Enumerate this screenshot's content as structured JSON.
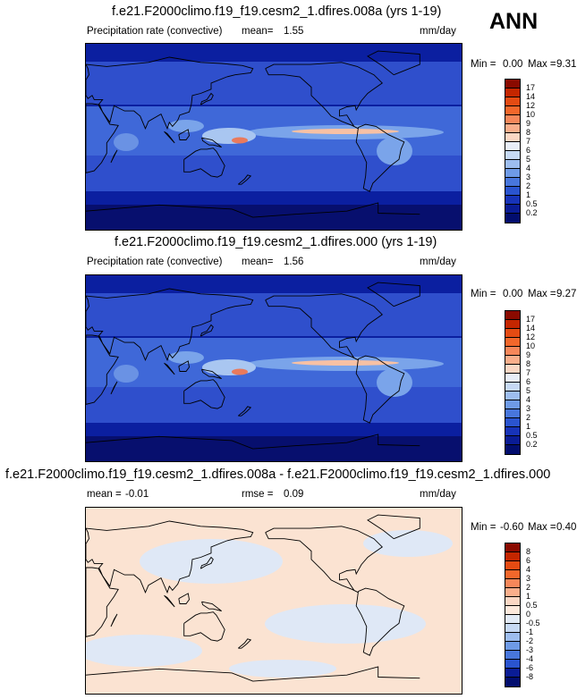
{
  "season_label": "ANN",
  "panels": [
    {
      "title": "f.e21.F2000climo.f19_f19.cesm2_1.dfires.008a (yrs 1-19)",
      "variable": "Precipitation rate (convective)",
      "stat1_label": "mean=",
      "stat1_value": "1.55",
      "stat2_label": "",
      "stat2_value": "",
      "units": "mm/day",
      "min_label": "Min =",
      "min_value": "0.00",
      "max_label": "Max =",
      "max_value": "9.31",
      "colorbar_labels": [
        "17",
        "14",
        "12",
        "10",
        "9",
        "8",
        "7",
        "6",
        "5",
        "4",
        "3",
        "2",
        "1",
        "0.5",
        "0.2"
      ],
      "colorbar_colors": [
        "#8a0a00",
        "#c42600",
        "#e44b13",
        "#f2672b",
        "#f6875a",
        "#f9ae8b",
        "#fad7c4",
        "#e8eef8",
        "#c6d9f4",
        "#9dbdef",
        "#6e9ae6",
        "#4876dc",
        "#2a54cf",
        "#1733b8",
        "#0a1c95",
        "#020d6e"
      ]
    },
    {
      "title": "f.e21.F2000climo.f19_f19.cesm2_1.dfires.000 (yrs 1-19)",
      "variable": "Precipitation rate (convective)",
      "stat1_label": "mean=",
      "stat1_value": "1.56",
      "stat2_label": "",
      "stat2_value": "",
      "units": "mm/day",
      "min_label": "Min =",
      "min_value": "0.00",
      "max_label": "Max =",
      "max_value": "9.27",
      "colorbar_labels": [
        "17",
        "14",
        "12",
        "10",
        "9",
        "8",
        "7",
        "6",
        "5",
        "4",
        "3",
        "2",
        "1",
        "0.5",
        "0.2"
      ],
      "colorbar_colors": [
        "#8a0a00",
        "#c42600",
        "#e44b13",
        "#f2672b",
        "#f6875a",
        "#f9ae8b",
        "#fad7c4",
        "#e8eef8",
        "#c6d9f4",
        "#9dbdef",
        "#6e9ae6",
        "#4876dc",
        "#2a54cf",
        "#1733b8",
        "#0a1c95",
        "#020d6e"
      ]
    },
    {
      "title": "f.e21.F2000climo.f19_f19.cesm2_1.dfires.008a - f.e21.F2000climo.f19_f19.cesm2_1.dfires.000",
      "variable": "",
      "stat1_label": "mean =",
      "stat1_value": "-0.01",
      "stat2_label": "rmse =",
      "stat2_value": "0.09",
      "units": "mm/day",
      "min_label": "Min =",
      "min_value": "-0.60",
      "max_label": "Max =",
      "max_value": "0.40",
      "colorbar_labels": [
        "8",
        "6",
        "4",
        "3",
        "2",
        "1",
        "0.5",
        "0",
        "-0.5",
        "-1",
        "-2",
        "-3",
        "-4",
        "-6",
        "-8"
      ],
      "colorbar_colors": [
        "#8a0a00",
        "#c42600",
        "#e44b13",
        "#f2672b",
        "#f6875a",
        "#f9ae8b",
        "#fad7c4",
        "#fce9dc",
        "#e2ebf7",
        "#c6d9f4",
        "#9dbdef",
        "#6e9ae6",
        "#4876dc",
        "#2a54cf",
        "#0a1c95",
        "#020d6e"
      ]
    }
  ]
}
